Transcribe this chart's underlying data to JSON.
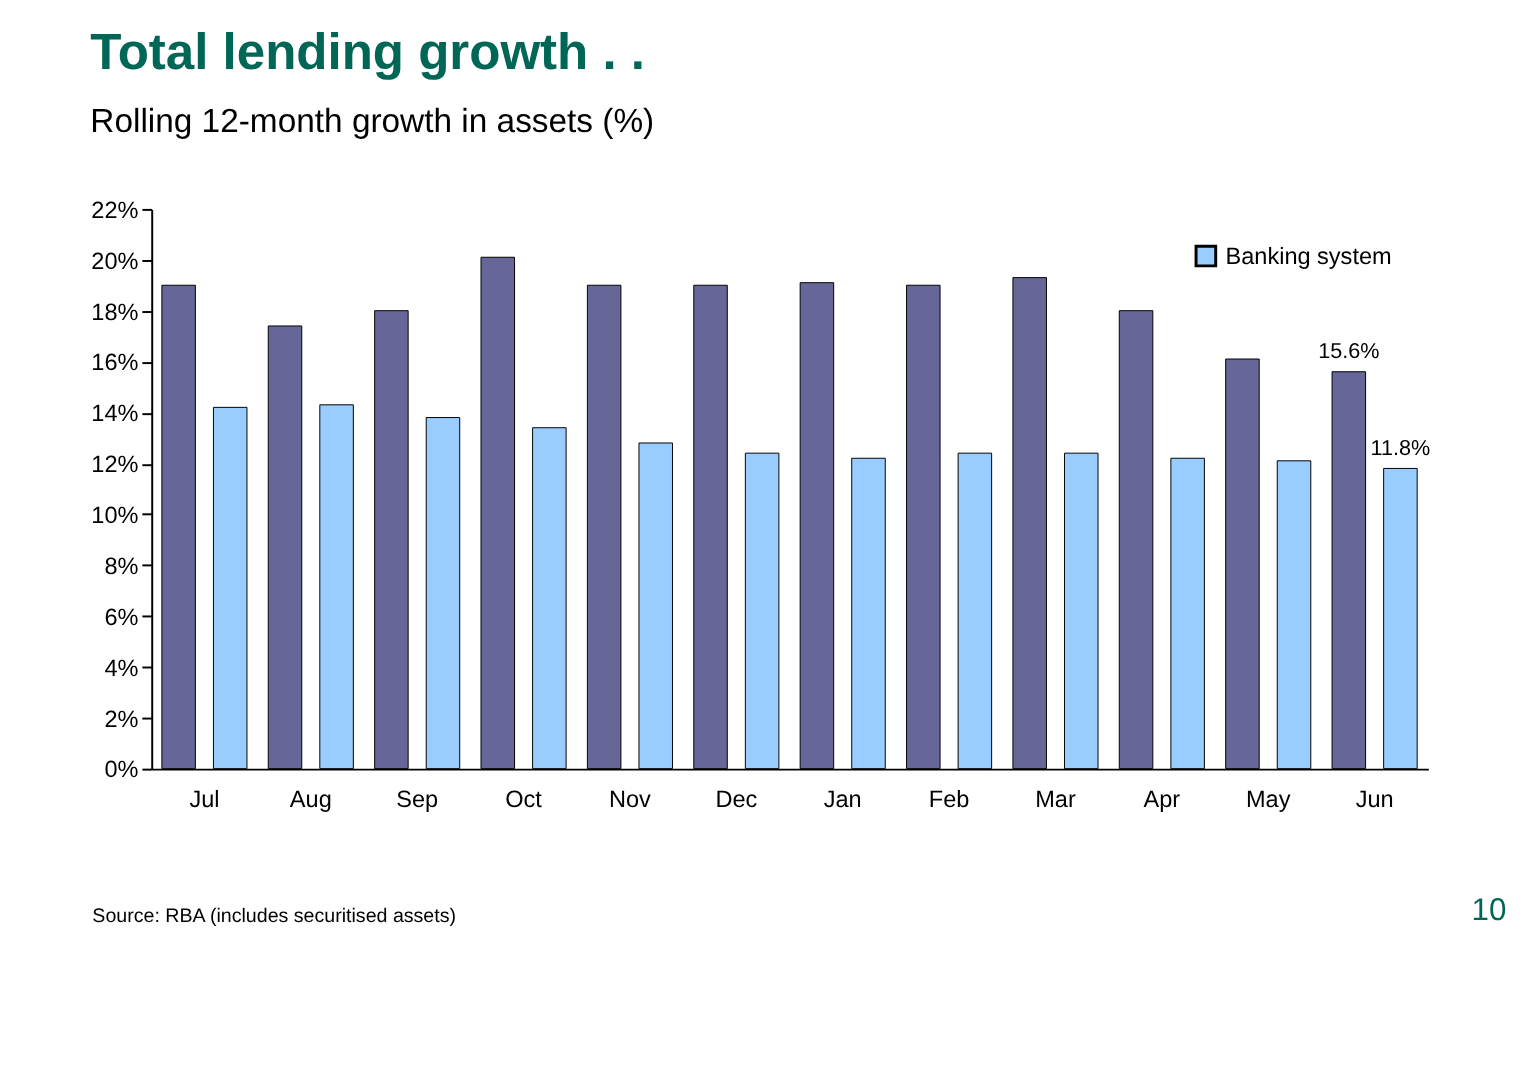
{
  "chart_data": {
    "type": "bar",
    "title": "Total lending growth . .",
    "subtitle": "Rolling 12-month growth in assets (%)",
    "categories": [
      "Jul",
      "Aug",
      "Sep",
      "Oct",
      "Nov",
      "Dec",
      "Jan",
      "Feb",
      "Mar",
      "Apr",
      "May",
      "Jun"
    ],
    "series": [
      {
        "color": "#666699",
        "values": [
          19.0,
          17.4,
          18.0,
          20.1,
          19.0,
          19.0,
          19.1,
          19.0,
          19.3,
          18.0,
          16.1,
          15.6
        ],
        "value_labels": [
          null,
          null,
          null,
          null,
          null,
          null,
          null,
          null,
          null,
          null,
          null,
          "15.6%"
        ]
      },
      {
        "name": "Banking system",
        "color": "#99ccff",
        "values": [
          14.2,
          14.3,
          13.8,
          13.4,
          12.8,
          12.4,
          12.2,
          12.4,
          12.4,
          12.2,
          12.1,
          11.8
        ],
        "value_labels": [
          null,
          null,
          null,
          null,
          null,
          null,
          null,
          null,
          null,
          null,
          null,
          "11.8%"
        ]
      }
    ],
    "ylim": [
      0,
      22
    ],
    "yticks": [
      {
        "value": 0,
        "label": "0%"
      },
      {
        "value": 2,
        "label": "2%"
      },
      {
        "value": 4,
        "label": "4%"
      },
      {
        "value": 6,
        "label": "6%"
      },
      {
        "value": 8,
        "label": "8%"
      },
      {
        "value": 10,
        "label": "10%"
      },
      {
        "value": 12,
        "label": "12%"
      },
      {
        "value": 14,
        "label": "14%"
      },
      {
        "value": 16,
        "label": "16%"
      },
      {
        "value": 18,
        "label": "18%"
      },
      {
        "value": 20,
        "label": "20%"
      },
      {
        "value": 22,
        "label": "22%"
      }
    ],
    "legend": "top right",
    "grid": false,
    "annotations": [
      "Source: RBA (includes securitised assets)",
      "10"
    ]
  }
}
